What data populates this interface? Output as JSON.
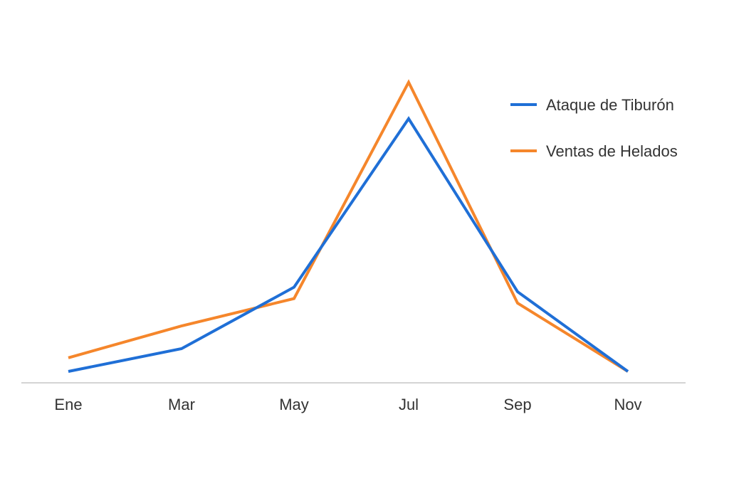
{
  "chart_data": {
    "type": "line",
    "title": "",
    "xlabel": "",
    "ylabel": "",
    "categories": [
      "Ene",
      "Mar",
      "May",
      "Jul",
      "Sep",
      "Nov"
    ],
    "series": [
      {
        "name": "Ataque de Tiburón",
        "color": "#1f6fd6",
        "values": [
          5,
          15,
          42,
          116,
          40,
          5
        ]
      },
      {
        "name": "Ventas de Helados",
        "color": "#f5862b",
        "values": [
          11,
          25,
          37,
          132,
          35,
          5
        ]
      }
    ],
    "ylim": [
      0,
      135
    ],
    "grid": false,
    "legend_position": "top-right"
  }
}
